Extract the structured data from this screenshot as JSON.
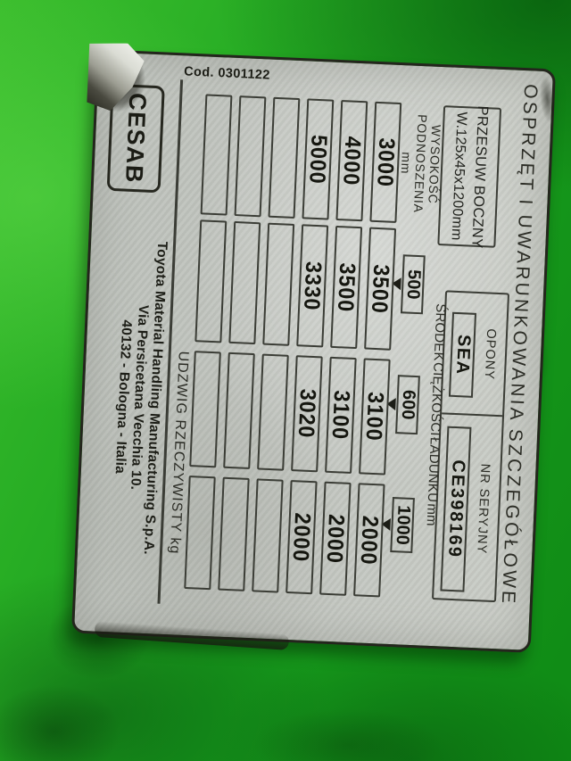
{
  "colors": {
    "background_green": "#1f9f20",
    "plate_silver": "#c6c9c3",
    "engraving_dark": "#3b3d36",
    "text_dark": "#1d1e17"
  },
  "plate": {
    "code": "Cod. 0301122",
    "brand": "CESAB",
    "title": "OSPRZĘT I UWARUNKOWANIA SZCZEGÓŁOWE",
    "attachment": {
      "name": "PRZESUW BOCZNY",
      "size": "W.125x45x1200mm"
    },
    "tyres": {
      "label": "OPONY",
      "value": "SEA"
    },
    "serial": {
      "label": "NR SERYJNY",
      "value": "CE398169"
    },
    "table": {
      "load_center_header": "ŚRODEK CIĘŻKOŚCI ŁADUNKU mm",
      "lift_height_header": {
        "line1": "WYSOKOŚĆ",
        "line2": "PODNOSZENIA mm"
      },
      "load_centers": [
        "500",
        "600",
        "1000"
      ],
      "rows": [
        {
          "height": "3000",
          "capacities": [
            "3500",
            "3100",
            "2000"
          ]
        },
        {
          "height": "4000",
          "capacities": [
            "3500",
            "3100",
            "2000"
          ]
        },
        {
          "height": "5000",
          "capacities": [
            "3330",
            "3020",
            "2000"
          ]
        },
        {
          "height": "",
          "capacities": [
            "",
            "",
            ""
          ]
        },
        {
          "height": "",
          "capacities": [
            "",
            "",
            ""
          ]
        },
        {
          "height": "",
          "capacities": [
            "",
            "",
            ""
          ]
        }
      ],
      "capacity_footer": "UDZWIG RZECZYWISTY kg"
    },
    "manufacturer": {
      "line1": "Toyota Material Handling Manufacturing S.p.A.",
      "line2": "Via Persicetana Vecchia 10.",
      "line3": "40132 - Bologna - Italia"
    }
  }
}
